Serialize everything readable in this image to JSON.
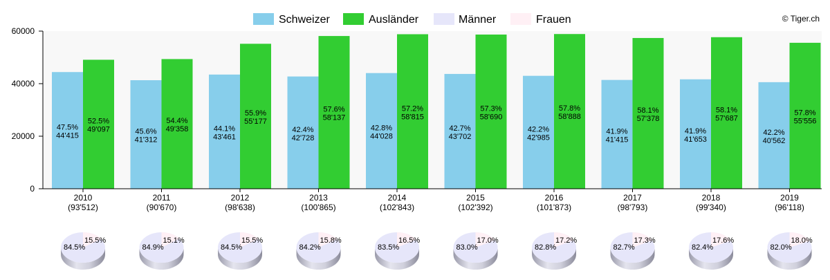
{
  "copyright": "© Tiger.ch",
  "colors": {
    "schweizer": "#87ceeb",
    "auslaender": "#32cd32",
    "maenner": "#e6e6fa",
    "frauen": "#fff0f5",
    "plot_bg": "#f8f8f8"
  },
  "chart_data": {
    "type": "bar",
    "categories": [
      "2010",
      "2011",
      "2012",
      "2013",
      "2014",
      "2015",
      "2016",
      "2017",
      "2018",
      "2019"
    ],
    "category_totals": [
      "(93'512)",
      "(90'670)",
      "(98'638)",
      "(100'865)",
      "(102'843)",
      "(102'392)",
      "(101'873)",
      "(98'793)",
      "(99'340)",
      "(96'118)"
    ],
    "ylim": [
      0,
      60000
    ],
    "yticks": [
      0,
      20000,
      40000,
      60000
    ],
    "ytick_labels": [
      "0",
      "20000",
      "40000",
      "60000"
    ],
    "legend_position": "top",
    "series": [
      {
        "name": "Schweizer",
        "values": [
          44415,
          41312,
          43461,
          42728,
          44028,
          43702,
          42985,
          41415,
          41653,
          40562
        ],
        "value_labels": [
          "44'415",
          "41'312",
          "43'461",
          "42'728",
          "44'028",
          "43'702",
          "42'985",
          "41'415",
          "41'653",
          "40'562"
        ],
        "percent_labels": [
          "47.5%",
          "45.6%",
          "44.1%",
          "42.4%",
          "42.8%",
          "42.7%",
          "42.2%",
          "41.9%",
          "41.9%",
          "42.2%"
        ]
      },
      {
        "name": "Ausländer",
        "values": [
          49097,
          49358,
          55177,
          58137,
          58815,
          58690,
          58888,
          57378,
          57687,
          55556
        ],
        "value_labels": [
          "49'097",
          "49'358",
          "55'177",
          "58'137",
          "58'815",
          "58'690",
          "58'888",
          "57'378",
          "57'687",
          "55'556"
        ],
        "percent_labels": [
          "52.5%",
          "54.4%",
          "55.9%",
          "57.6%",
          "57.2%",
          "57.3%",
          "57.8%",
          "58.1%",
          "58.1%",
          "57.8%"
        ]
      }
    ],
    "pies": {
      "legend": [
        "Männer",
        "Frauen"
      ],
      "maenner": [
        84.5,
        84.9,
        84.5,
        84.2,
        83.5,
        83.0,
        82.8,
        82.7,
        82.4,
        82.0
      ],
      "frauen": [
        15.5,
        15.1,
        15.5,
        15.8,
        16.5,
        17.0,
        17.2,
        17.3,
        17.6,
        18.0
      ],
      "maenner_labels": [
        "84.5%",
        "84.9%",
        "84.5%",
        "84.2%",
        "83.5%",
        "83.0%",
        "82.8%",
        "82.7%",
        "82.4%",
        "82.0%"
      ],
      "frauen_labels": [
        "15.5%",
        "15.1%",
        "15.5%",
        "15.8%",
        "16.5%",
        "17.0%",
        "17.2%",
        "17.3%",
        "17.6%",
        "18.0%"
      ]
    }
  }
}
